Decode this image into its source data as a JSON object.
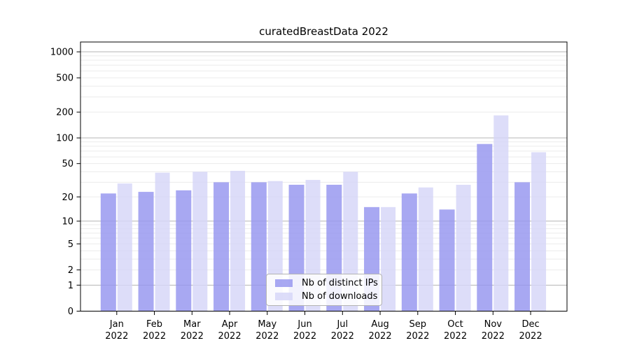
{
  "title": "curatedBreastData 2022",
  "chart_data": {
    "type": "bar",
    "title": "curatedBreastData 2022",
    "y_scale": "log10(1+x)",
    "categories": [
      "Jan",
      "Feb",
      "Mar",
      "Apr",
      "May",
      "Jun",
      "Jul",
      "Aug",
      "Sep",
      "Oct",
      "Nov",
      "Dec"
    ],
    "year_label": "2022",
    "series": [
      {
        "name": "Nb of distinct IPs",
        "color": "#9595ef",
        "values": [
          22,
          23,
          24,
          30,
          30,
          28,
          28,
          15,
          22,
          14,
          85,
          30
        ]
      },
      {
        "name": "Nb of downloads",
        "color": "#d5d5f8",
        "values": [
          29,
          39,
          40,
          41,
          31,
          32,
          40,
          15,
          26,
          28,
          183,
          68
        ]
      }
    ],
    "y_ticks": [
      0,
      1,
      2,
      5,
      10,
      20,
      50,
      100,
      200,
      500,
      1000
    ],
    "ylim": [
      0,
      1300
    ],
    "grid": "on",
    "grid_major_color": "#b5b5b5",
    "grid_minor_color": "#ebebeb",
    "legend_position": "bottom-center"
  }
}
